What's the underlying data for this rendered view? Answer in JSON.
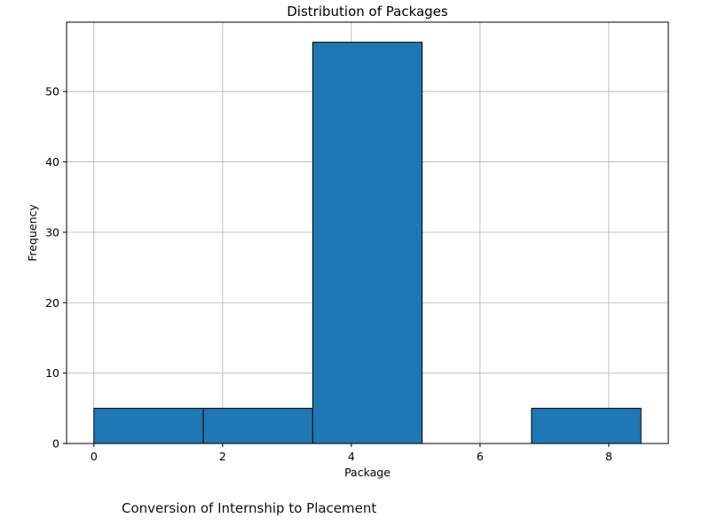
{
  "chart_data": {
    "type": "bar",
    "title": "Distribution of Packages",
    "xlabel": "Package",
    "ylabel": "Frequency",
    "bins": [
      {
        "start": 0.0,
        "end": 1.7,
        "count": 5
      },
      {
        "start": 1.7,
        "end": 3.4,
        "count": 5
      },
      {
        "start": 3.4,
        "end": 5.1,
        "count": 57
      },
      {
        "start": 5.1,
        "end": 6.8,
        "count": 0
      },
      {
        "start": 6.8,
        "end": 8.5,
        "count": 5
      }
    ],
    "xlim": [
      -0.425,
      8.925
    ],
    "ylim": [
      0,
      59.85
    ],
    "xticks": [
      0,
      2,
      4,
      6,
      8
    ],
    "yticks": [
      0,
      10,
      20,
      30,
      40,
      50
    ],
    "grid": true,
    "bar_color": "#1f77b4",
    "edge_color": "#000000"
  },
  "caption": "Conversion of Internship to Placement"
}
